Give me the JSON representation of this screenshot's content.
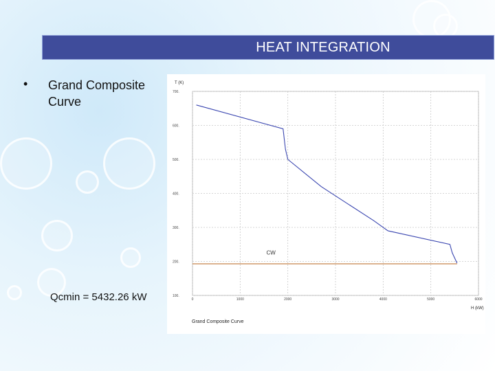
{
  "slide": {
    "title": "HEAT INTEGRATION",
    "bullet": "Grand Composite Curve",
    "bullet_marker": "•",
    "qcmin": "Qcmin = 5432.26 kW"
  },
  "colors": {
    "title_bg": "#3f4c9b",
    "curve": "#3a46b0",
    "cw_line": "#c8844a"
  },
  "chart_data": {
    "type": "line",
    "title": "Grand Composite Curve",
    "xlabel": "H (kW)",
    "ylabel": "T (K)",
    "xlim": [
      0,
      6000
    ],
    "ylim": [
      100,
      700
    ],
    "x_ticks": [
      0,
      1000,
      2000,
      3000,
      4000,
      5000,
      6000
    ],
    "y_ticks": [
      100,
      200,
      300,
      400,
      500,
      600,
      700
    ],
    "x_tick_labels": [
      "0",
      "1000",
      "2000",
      "3000",
      "4000",
      "5000",
      "6000"
    ],
    "y_tick_labels": [
      "100.",
      "200.",
      "300.",
      "400.",
      "500.",
      "600.",
      "700."
    ],
    "series": [
      {
        "name": "GCC",
        "x": [
          80,
          1900,
          1950,
          2000,
          2700,
          3800,
          4100,
          5400,
          5450,
          5550
        ],
        "y": [
          660,
          590,
          530,
          500,
          420,
          320,
          290,
          250,
          225,
          195
        ]
      },
      {
        "name": "CW",
        "x": [
          0,
          5550
        ],
        "y": [
          193,
          193
        ]
      }
    ],
    "annotations": [
      {
        "text": "CW",
        "x": 1550,
        "y": 220
      }
    ],
    "grid": true
  }
}
